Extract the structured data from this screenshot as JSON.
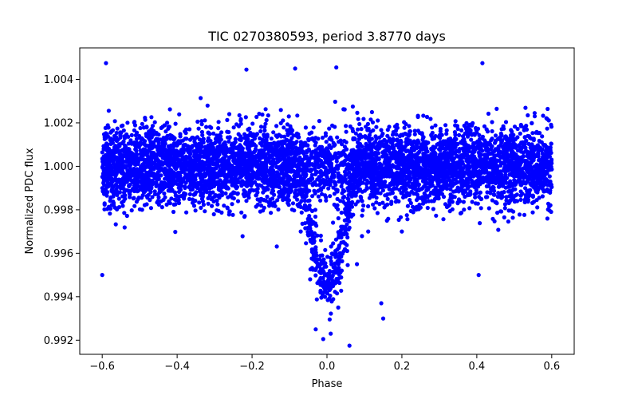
{
  "chart_data": {
    "type": "scatter",
    "title": "TIC 0270380593, period 3.8770 days",
    "xlabel": "Phase",
    "ylabel": "Normalized PDC flux",
    "xlim": [
      -0.66,
      0.66
    ],
    "ylim": [
      0.99135,
      1.00545
    ],
    "xticks": [
      -0.6,
      -0.4,
      -0.2,
      0.0,
      0.2,
      0.4,
      0.6
    ],
    "xtick_labels": [
      "−0.6",
      "−0.4",
      "−0.2",
      "0.0",
      "0.2",
      "0.4",
      "0.6"
    ],
    "yticks": [
      0.992,
      0.994,
      0.996,
      0.998,
      1.0,
      1.002,
      1.004
    ],
    "ytick_labels": [
      "0.992",
      "0.994",
      "0.996",
      "0.998",
      "1.000",
      "1.002",
      "1.004"
    ],
    "grid": false,
    "marker_color": "#0000ff",
    "series": [
      {
        "name": "PDC flux",
        "baseline": 1.0,
        "scatter_sigma": 0.0009,
        "phase_range": [
          -0.6,
          0.6
        ],
        "transit": {
          "center": 0.0,
          "half_width": 0.075,
          "depth": 0.0052
        },
        "points": [
          {
            "x": -0.59,
            "y": 1.00475
          },
          {
            "x": 0.415,
            "y": 1.00475
          },
          {
            "x": 0.025,
            "y": 1.00455
          },
          {
            "x": -0.215,
            "y": 1.00445
          },
          {
            "x": -0.085,
            "y": 1.0045
          },
          {
            "x": -0.6,
            "y": 0.995
          },
          {
            "x": 0.405,
            "y": 0.995
          },
          {
            "x": 0.06,
            "y": 0.99175
          },
          {
            "x": 0.15,
            "y": 0.993
          },
          {
            "x": 0.145,
            "y": 0.9937
          },
          {
            "x": -0.03,
            "y": 0.9925
          },
          {
            "x": 0.01,
            "y": 0.9923
          },
          {
            "x": -0.01,
            "y": 0.99205
          },
          {
            "x": -0.045,
            "y": 0.9948
          },
          {
            "x": 0.03,
            "y": 0.9935
          },
          {
            "x": 0.08,
            "y": 0.9955
          },
          {
            "x": 0.11,
            "y": 0.997
          },
          {
            "x": -0.07,
            "y": 0.997
          },
          {
            "x": 0.2,
            "y": 0.997
          },
          {
            "x": 0.16,
            "y": 0.9975
          }
        ]
      }
    ]
  }
}
